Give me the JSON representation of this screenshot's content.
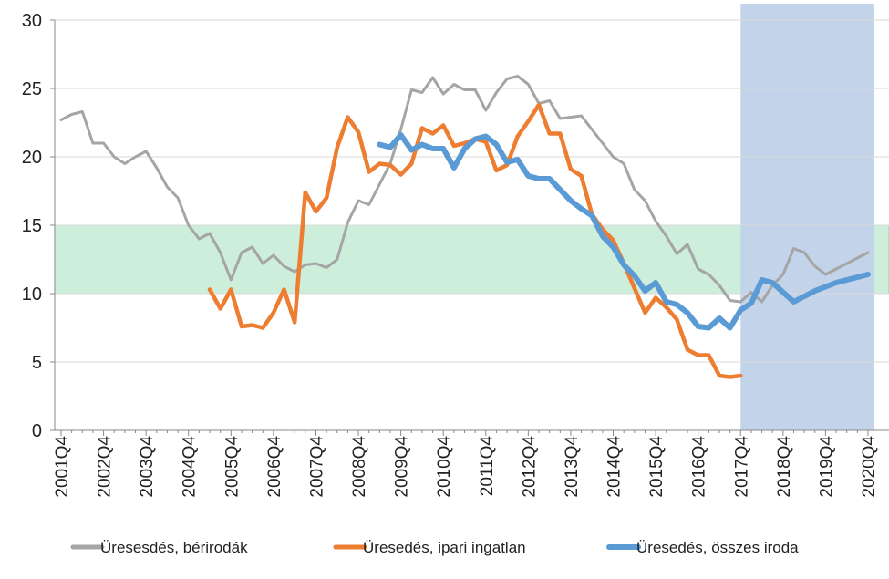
{
  "chart_data": {
    "type": "line",
    "title": "",
    "xlabel": "",
    "ylabel": "",
    "ylim": [
      0,
      30
    ],
    "yticks": [
      0,
      5,
      10,
      15,
      20,
      25,
      30
    ],
    "x_range": [
      2001.75,
      2020.75
    ],
    "x_tick_labels": [
      "2001Q4",
      "2002Q4",
      "2003Q4",
      "2004Q4",
      "2005Q4",
      "2006Q4",
      "2007Q4",
      "2008Q4",
      "2009Q4",
      "2010Q4",
      "2011Q4",
      "2012Q4",
      "2013Q4",
      "2014Q4",
      "2015Q4",
      "2016Q4",
      "2017Q4",
      "2018Q4",
      "2019Q4",
      "2020Q4"
    ],
    "bands": [
      {
        "name": "target-band",
        "y_from": 10,
        "y_to": 15,
        "color": "#cdeedb"
      },
      {
        "name": "forecast-region",
        "x_from": 2017.75,
        "x_to": 2020.9,
        "color": "#c3d4ea"
      }
    ],
    "series": [
      {
        "name": "Üresesdés, bérirodák",
        "color": "#a5a5a5",
        "width": 3,
        "x": [
          2001.75,
          2002.0,
          2002.25,
          2002.5,
          2002.75,
          2003.0,
          2003.25,
          2003.5,
          2003.75,
          2004.0,
          2004.25,
          2004.5,
          2004.75,
          2005.0,
          2005.25,
          2005.5,
          2005.75,
          2006.0,
          2006.25,
          2006.5,
          2006.75,
          2007.0,
          2007.25,
          2007.5,
          2007.75,
          2008.0,
          2008.25,
          2008.5,
          2008.75,
          2009.0,
          2009.25,
          2009.5,
          2009.75,
          2010.0,
          2010.25,
          2010.5,
          2010.75,
          2011.0,
          2011.25,
          2011.5,
          2011.75,
          2012.0,
          2012.25,
          2012.5,
          2012.75,
          2013.0,
          2013.25,
          2013.5,
          2013.75,
          2014.0,
          2014.25,
          2014.5,
          2014.75,
          2015.0,
          2015.25,
          2015.5,
          2015.75,
          2016.0,
          2016.25,
          2016.5,
          2016.75,
          2017.0,
          2017.25,
          2017.5,
          2017.75,
          2018.0,
          2018.25,
          2018.5,
          2018.75,
          2019.0,
          2019.25,
          2019.5,
          2019.75,
          2020.0,
          2020.25,
          2020.5,
          2020.75
        ],
        "values": [
          22.7,
          23.1,
          23.3,
          21.0,
          21.0,
          20.0,
          19.5,
          20.0,
          20.4,
          19.2,
          17.8,
          17.0,
          15.0,
          14.0,
          14.4,
          13.0,
          11.0,
          13.0,
          13.4,
          12.2,
          12.8,
          12.0,
          11.6,
          12.1,
          12.2,
          11.9,
          12.5,
          15.2,
          16.8,
          16.5,
          18.0,
          19.5,
          22.0,
          24.9,
          24.7,
          25.8,
          24.6,
          25.3,
          24.9,
          24.9,
          23.4,
          24.7,
          25.7,
          25.9,
          25.3,
          23.9,
          24.1,
          22.8,
          22.9,
          23.0,
          22.0,
          21.0,
          20.0,
          19.5,
          17.6,
          16.8,
          15.3,
          14.2,
          12.9,
          13.6,
          11.8,
          11.4,
          10.6,
          9.5,
          9.4,
          10.1,
          9.4,
          10.6,
          11.4,
          13.3,
          13.0,
          12.0,
          11.4,
          11.8,
          12.2,
          12.6,
          13.0
        ]
      },
      {
        "name": "Üresedés, ipari ingatlan",
        "color": "#ed7d31",
        "width": 4.5,
        "x": [
          2005.25,
          2005.5,
          2005.75,
          2006.0,
          2006.25,
          2006.5,
          2006.75,
          2007.0,
          2007.25,
          2007.5,
          2007.75,
          2008.0,
          2008.25,
          2008.5,
          2008.75,
          2009.0,
          2009.25,
          2009.5,
          2009.75,
          2010.0,
          2010.25,
          2010.5,
          2010.75,
          2011.0,
          2011.25,
          2011.5,
          2011.75,
          2012.0,
          2012.25,
          2012.5,
          2012.75,
          2013.0,
          2013.25,
          2013.5,
          2013.75,
          2014.0,
          2014.25,
          2014.5,
          2014.75,
          2015.0,
          2015.25,
          2015.5,
          2015.75,
          2016.0,
          2016.25,
          2016.5,
          2016.75,
          2017.0,
          2017.25,
          2017.5,
          2017.75
        ],
        "values": [
          10.3,
          8.9,
          10.3,
          7.6,
          7.7,
          7.5,
          8.6,
          10.3,
          7.9,
          17.4,
          16.0,
          17.0,
          20.7,
          22.9,
          21.8,
          18.9,
          19.5,
          19.4,
          18.7,
          19.5,
          22.1,
          21.7,
          22.3,
          20.8,
          21.0,
          21.3,
          21.1,
          19.0,
          19.4,
          21.5,
          22.6,
          23.8,
          21.7,
          21.7,
          19.1,
          18.6,
          15.8,
          14.7,
          13.9,
          12.2,
          10.4,
          8.6,
          9.7,
          9.0,
          8.1,
          5.9,
          5.5,
          5.5,
          4.0,
          3.9,
          4.0
        ]
      },
      {
        "name": "Üresedés, összes iroda",
        "color": "#5b9bd5",
        "width": 6,
        "x": [
          2009.25,
          2009.5,
          2009.75,
          2010.0,
          2010.25,
          2010.5,
          2010.75,
          2011.0,
          2011.25,
          2011.5,
          2011.75,
          2012.0,
          2012.25,
          2012.5,
          2012.75,
          2013.0,
          2013.25,
          2013.5,
          2013.75,
          2014.0,
          2014.25,
          2014.5,
          2014.75,
          2015.0,
          2015.25,
          2015.5,
          2015.75,
          2016.0,
          2016.25,
          2016.5,
          2016.75,
          2017.0,
          2017.25,
          2017.5,
          2017.75,
          2018.0,
          2018.25,
          2018.5,
          2018.75,
          2019.0,
          2019.25,
          2019.5,
          2019.75,
          2020.0,
          2020.25,
          2020.5,
          2020.75
        ],
        "values": [
          20.9,
          20.7,
          21.6,
          20.5,
          20.9,
          20.6,
          20.6,
          19.2,
          20.6,
          21.3,
          21.5,
          20.9,
          19.6,
          19.8,
          18.6,
          18.4,
          18.4,
          17.6,
          16.8,
          16.2,
          15.7,
          14.2,
          13.4,
          12.1,
          11.3,
          10.2,
          10.8,
          9.4,
          9.2,
          8.6,
          7.6,
          7.5,
          8.2,
          7.5,
          8.8,
          9.3,
          11.0,
          10.8,
          10.1,
          9.4,
          9.8,
          10.2,
          10.5,
          10.8,
          11.0,
          11.2,
          11.4
        ]
      }
    ],
    "legend_position": "bottom"
  }
}
